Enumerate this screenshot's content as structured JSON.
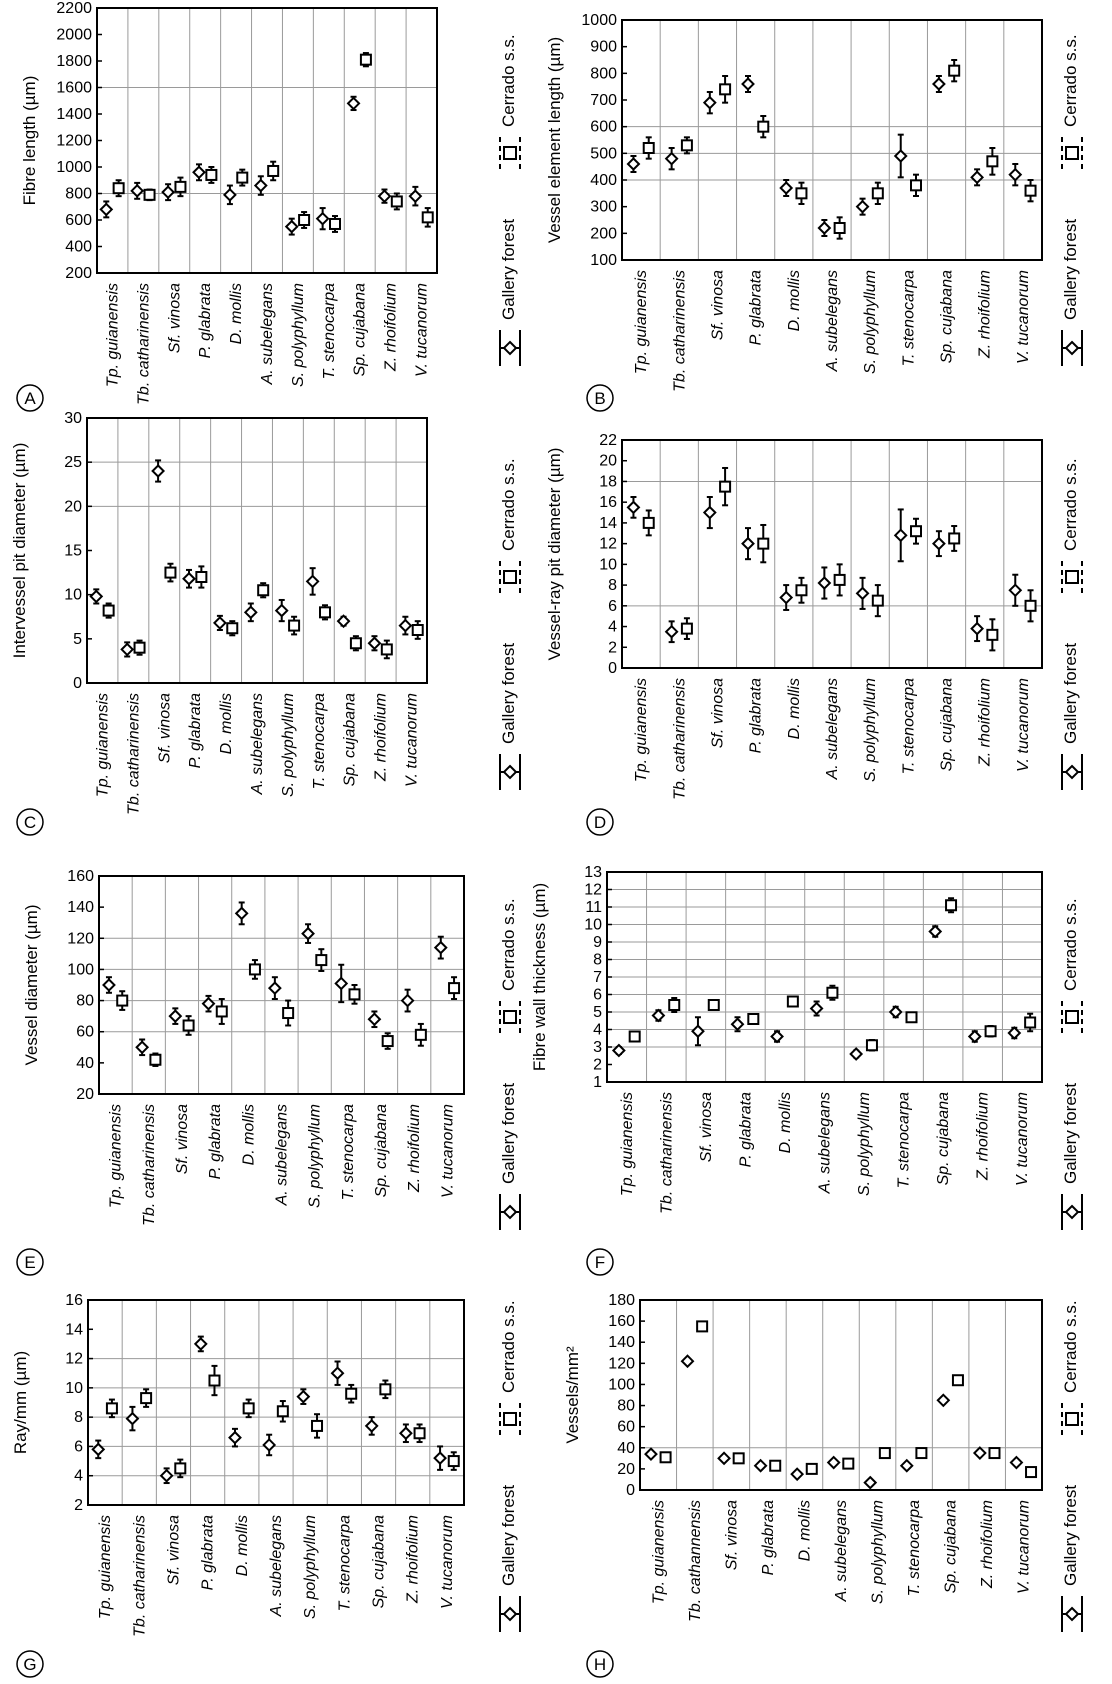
{
  "legend": {
    "gallery": "Gallery forest",
    "cerrado": "Cerrado s.s."
  },
  "chart_data": [
    {
      "panel": "A",
      "type": "scatter",
      "ylabel": "Fibre length (µm)",
      "ylim": [
        200,
        2200
      ],
      "yticks": [
        200,
        400,
        600,
        800,
        1000,
        1200,
        1400,
        1600,
        1800,
        2000,
        2200
      ],
      "hlines": [
        800,
        1600
      ],
      "categories": [
        "Tp. guianensis",
        "Tb. catharinensis",
        "Sf. vinosa",
        "P. glabrata",
        "D. mollis",
        "A. subelegans",
        "S. polyphyllum",
        "T. stenocarpa",
        "Sp. cujabana",
        "Z. rhoifolium",
        "V. tucanorum"
      ],
      "series": [
        {
          "name": "Gallery forest",
          "values": [
            680,
            820,
            810,
            960,
            790,
            860,
            550,
            610,
            1480,
            780,
            780
          ],
          "err": [
            60,
            60,
            60,
            60,
            70,
            70,
            60,
            80,
            50,
            50,
            70
          ]
        },
        {
          "name": "Cerrado s.s.",
          "values": [
            840,
            790,
            850,
            940,
            920,
            970,
            600,
            570,
            1810,
            740,
            620
          ],
          "err": [
            60,
            40,
            70,
            60,
            60,
            70,
            60,
            60,
            50,
            60,
            70
          ]
        }
      ]
    },
    {
      "panel": "B",
      "type": "scatter",
      "ylabel": "Vessel element length (µm)",
      "ylim": [
        100,
        1000
      ],
      "yticks": [
        100,
        200,
        300,
        400,
        500,
        600,
        700,
        800,
        900,
        1000
      ],
      "hlines": [
        400,
        500,
        600
      ],
      "categories": [
        "Tp. guianensis",
        "Tb. catharinensis",
        "Sf. vinosa",
        "P. glabrata",
        "D. mollis",
        "A. subelegans",
        "S. polyphyllum",
        "T. stenocarpa",
        "Sp. cujabana",
        "Z. rhoifolium",
        "V. tucanorum"
      ],
      "series": [
        {
          "name": "Gallery forest",
          "values": [
            460,
            480,
            690,
            760,
            370,
            220,
            300,
            490,
            760,
            410,
            420
          ],
          "err": [
            30,
            40,
            40,
            30,
            30,
            30,
            30,
            80,
            30,
            30,
            40
          ]
        },
        {
          "name": "Cerrado s.s.",
          "values": [
            520,
            530,
            740,
            600,
            350,
            220,
            350,
            380,
            810,
            470,
            360
          ],
          "err": [
            40,
            30,
            50,
            40,
            40,
            40,
            40,
            40,
            40,
            50,
            40
          ]
        }
      ]
    },
    {
      "panel": "C",
      "type": "scatter",
      "ylabel": "Intervessel pit diameter (µm)",
      "ylim": [
        0,
        30
      ],
      "yticks": [
        0,
        5,
        10,
        15,
        20,
        25,
        30
      ],
      "hlines": [
        20,
        25
      ],
      "categories": [
        "Tp. guianensis",
        "Tb. catharinensis",
        "Sf. vinosa",
        "P. glabrata",
        "D. mollis",
        "A. subelegans",
        "S. polyphyllum",
        "T. stenocarpa",
        "Sp. cujabana",
        "Z. rhoifolium",
        "V. tucanorum"
      ],
      "series": [
        {
          "name": "Gallery forest",
          "values": [
            9.8,
            3.8,
            24,
            11.8,
            6.8,
            8,
            8.2,
            11.5,
            7,
            4.5,
            6.5
          ],
          "err": [
            0.8,
            0.8,
            1.2,
            1,
            0.8,
            1,
            1.2,
            1.5,
            0.5,
            0.8,
            1
          ]
        },
        {
          "name": "Cerrado s.s.",
          "values": [
            8.2,
            4,
            12.5,
            12,
            6.2,
            10.5,
            6.5,
            8,
            4.5,
            3.8,
            6
          ],
          "err": [
            0.8,
            0.8,
            1,
            1.2,
            0.8,
            0.8,
            1,
            0.8,
            0.8,
            1,
            1
          ]
        }
      ]
    },
    {
      "panel": "D",
      "type": "scatter",
      "ylabel": "Vessel-ray pit diameter (µm)",
      "ylim": [
        0,
        22
      ],
      "yticks": [
        0,
        2,
        4,
        6,
        8,
        10,
        12,
        14,
        16,
        18,
        20,
        22
      ],
      "hlines": [
        6,
        18
      ],
      "categories": [
        "Tp. guianensis",
        "Tb. catharinensis",
        "Sf. vinosa",
        "P. glabrata",
        "D. mollis",
        "A. subelegans",
        "S. polyphyllum",
        "T. stenocarpa",
        "Sp. cujabana",
        "Z. rhoifolium",
        "V. tucanorum"
      ],
      "series": [
        {
          "name": "Gallery forest",
          "values": [
            15.5,
            3.5,
            15,
            12,
            6.8,
            8.2,
            7.2,
            12.8,
            12,
            3.8,
            7.5
          ],
          "err": [
            1,
            1,
            1.5,
            1.5,
            1.2,
            1.5,
            1.5,
            2.5,
            1.2,
            1.2,
            1.5
          ]
        },
        {
          "name": "Cerrado s.s.",
          "values": [
            14,
            3.8,
            17.5,
            12,
            7.5,
            8.5,
            6.5,
            13.2,
            12.5,
            3.2,
            6
          ],
          "err": [
            1.2,
            1,
            1.8,
            1.8,
            1.2,
            1.5,
            1.5,
            1.2,
            1.2,
            1.5,
            1.5
          ]
        }
      ]
    },
    {
      "panel": "E",
      "type": "scatter",
      "ylabel": "Vessel diameter (µm)",
      "ylim": [
        20,
        160
      ],
      "yticks": [
        20,
        40,
        60,
        80,
        100,
        120,
        140,
        160
      ],
      "hlines": [
        60,
        80,
        100,
        120
      ],
      "categories": [
        "Tp. guianensis",
        "Tb. catharinensis",
        "Sf. vinosa",
        "P. glabrata",
        "D. mollis",
        "A. subelegans",
        "S. polyphyllum",
        "T. stenocarpa",
        "Sp. cujabana",
        "Z. rhoifolium",
        "V. tucanorum"
      ],
      "series": [
        {
          "name": "Gallery forest",
          "values": [
            90,
            50,
            70,
            78,
            136,
            88,
            123,
            91,
            68,
            80,
            114
          ],
          "err": [
            5,
            5,
            5,
            5,
            7,
            7,
            6,
            12,
            5,
            7,
            7
          ]
        },
        {
          "name": "Cerrado s.s.",
          "values": [
            80,
            42,
            64,
            73,
            100,
            72,
            106,
            84,
            54,
            58,
            88
          ],
          "err": [
            6,
            4,
            6,
            8,
            6,
            8,
            7,
            6,
            5,
            7,
            7
          ]
        }
      ]
    },
    {
      "panel": "F",
      "type": "scatter",
      "ylabel": "Fibre wall thickness (µm)",
      "ylim": [
        1,
        13
      ],
      "yticks": [
        1,
        2,
        3,
        4,
        5,
        6,
        7,
        8,
        9,
        10,
        11,
        12,
        13
      ],
      "hlines": [
        3,
        4,
        5,
        6,
        7,
        8,
        9,
        10,
        11,
        12
      ],
      "categories": [
        "Tp. guianensis",
        "Tb. catharinensis",
        "Sf. vinosa",
        "P. glabrata",
        "D. mollis",
        "A. subelegans",
        "S. polyphyllum",
        "T. stenocarpa",
        "Sp. cujabana",
        "Z. rhoifolium",
        "V. tucanorum"
      ],
      "series": [
        {
          "name": "Gallery forest",
          "values": [
            2.8,
            4.8,
            3.9,
            4.3,
            3.6,
            5.2,
            2.6,
            5,
            9.6,
            3.6,
            3.8
          ],
          "err": [
            0.2,
            0.3,
            0.8,
            0.4,
            0.3,
            0.4,
            0.2,
            0.3,
            0.3,
            0.3,
            0.3
          ]
        },
        {
          "name": "Cerrado s.s.",
          "values": [
            3.6,
            5.4,
            5.4,
            4.6,
            5.6,
            6.1,
            3.1,
            4.7,
            11.1,
            3.9,
            4.4
          ],
          "err": [
            0.2,
            0.4,
            0.2,
            0.2,
            0.2,
            0.4,
            0.3,
            0.2,
            0.4,
            0.3,
            0.5
          ]
        }
      ]
    },
    {
      "panel": "G",
      "type": "scatter",
      "ylabel": "Ray/mm (µm)",
      "ylim": [
        2,
        16
      ],
      "yticks": [
        2,
        4,
        6,
        8,
        10,
        12,
        14,
        16
      ],
      "hlines": [
        4,
        6,
        8,
        10,
        12
      ],
      "categories": [
        "Tp. guianensis",
        "Tb. catharinensis",
        "Sf. vinosa",
        "P. glabrata",
        "D. mollis",
        "A. subelegans",
        "S. polyphyllum",
        "T. stenocarpa",
        "Sp. cujabana",
        "Z. rhoifolium",
        "V. tucanorum"
      ],
      "series": [
        {
          "name": "Gallery forest",
          "values": [
            5.8,
            7.9,
            4,
            13,
            6.6,
            6.1,
            9.4,
            11,
            7.4,
            6.9,
            5.2
          ],
          "err": [
            0.6,
            0.8,
            0.5,
            0.5,
            0.6,
            0.7,
            0.5,
            0.8,
            0.6,
            0.6,
            0.8
          ]
        },
        {
          "name": "Cerrado s.s.",
          "values": [
            8.6,
            9.3,
            4.5,
            10.5,
            8.6,
            8.4,
            7.4,
            9.6,
            9.9,
            6.9,
            5
          ],
          "err": [
            0.6,
            0.6,
            0.6,
            1,
            0.6,
            0.7,
            0.8,
            0.6,
            0.6,
            0.6,
            0.6
          ]
        }
      ]
    },
    {
      "panel": "H",
      "type": "scatter",
      "ylabel": "Vessels/mm²",
      "ylim": [
        0,
        180
      ],
      "yticks": [
        0,
        20,
        40,
        60,
        80,
        100,
        120,
        140,
        160,
        180
      ],
      "hlines": [
        40
      ],
      "categories": [
        "Tp. guianensis",
        "Tb. cathannensis",
        "Sf. vinosa",
        "P. glabrata",
        "D. mollis",
        "A. subelegans",
        "S. polyphyllum",
        "T. stenocarpa",
        "Sp. cujabana",
        "Z. rhoifolium",
        "V. tucanorum"
      ],
      "series": [
        {
          "name": "Gallery forest",
          "values": [
            34,
            122,
            30,
            23,
            15,
            26,
            7,
            23,
            85,
            35,
            26
          ],
          "err": [
            0,
            0,
            0,
            0,
            0,
            0,
            0,
            0,
            0,
            0,
            0
          ]
        },
        {
          "name": "Cerrado s.s.",
          "values": [
            31,
            155,
            30,
            23,
            20,
            25,
            35,
            35,
            104,
            35,
            17
          ],
          "err": [
            0,
            0,
            0,
            0,
            0,
            0,
            0,
            0,
            0,
            0,
            0
          ]
        }
      ]
    }
  ]
}
